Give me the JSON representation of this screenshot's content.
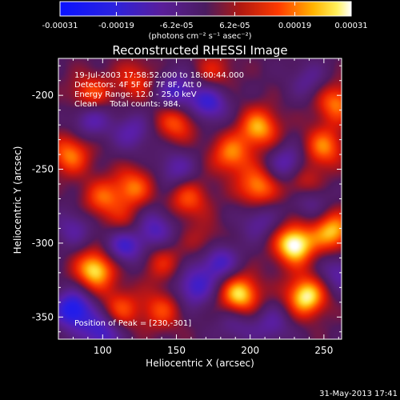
{
  "chart_data": {
    "type": "heatmap",
    "title": "Reconstructed RHESSI Image",
    "xlabel": "Heliocentric X (arcsec)",
    "ylabel": "Heliocentric Y (arcsec)",
    "xlim": [
      70,
      262
    ],
    "ylim": [
      -365,
      -175
    ],
    "x_ticks": [
      "100",
      "150",
      "200",
      "250"
    ],
    "x_tick_values": [
      100,
      150,
      200,
      250
    ],
    "y_ticks": [
      "-200",
      "-250",
      "-300",
      "-350"
    ],
    "y_tick_values": [
      -200,
      -250,
      -300,
      -350
    ],
    "colorbar": {
      "ticks": [
        "-0.00031",
        "-0.00019",
        "-6.2e-05",
        "6.2e-05",
        "0.00019",
        "0.00031"
      ],
      "tick_values": [
        -0.00031,
        -0.00019,
        -6.2e-05,
        6.2e-05,
        0.00019,
        0.00031
      ],
      "range": [
        -0.00031,
        0.00031
      ],
      "colormap": "blue-purple-red-yellow-white"
    },
    "unit_label": "(photons cm⁻² s⁻¹ asec⁻²)",
    "info_lines": [
      "19-Jul-2003 17:58:52.000 to 18:00:44.000",
      "Detectors: 4F 5F 6F 7F 8F, Att 0",
      "Energy Range: 12.0 - 25.0 keV",
      "Clean     Total counts: 984."
    ],
    "peak_label": "Position of Peak = [230,-301]",
    "peak": {
      "x": 230,
      "y": -301
    },
    "blobs": [
      {
        "x": 230,
        "y": -301,
        "v": 1.0
      },
      {
        "x": 238,
        "y": -336,
        "v": 0.9
      },
      {
        "x": 193,
        "y": -335,
        "v": 0.85
      },
      {
        "x": 95,
        "y": -318,
        "v": 0.85
      },
      {
        "x": 256,
        "y": -292,
        "v": 0.75
      },
      {
        "x": 206,
        "y": -222,
        "v": 0.7
      },
      {
        "x": 205,
        "y": -262,
        "v": 0.65
      },
      {
        "x": 187,
        "y": -240,
        "v": 0.6
      },
      {
        "x": 250,
        "y": -235,
        "v": 0.6
      },
      {
        "x": 150,
        "y": -218,
        "v": 0.55
      },
      {
        "x": 158,
        "y": -270,
        "v": 0.5
      },
      {
        "x": 121,
        "y": -262,
        "v": 0.55
      },
      {
        "x": 100,
        "y": -270,
        "v": 0.5
      },
      {
        "x": 78,
        "y": -240,
        "v": 0.6
      },
      {
        "x": 140,
        "y": -345,
        "v": 0.45
      },
      {
        "x": 112,
        "y": -345,
        "v": 0.5
      },
      {
        "x": 140,
        "y": -313,
        "v": 0.35
      },
      {
        "x": 170,
        "y": -300,
        "v": 0.3
      },
      {
        "x": 236,
        "y": -260,
        "v": 0.55
      },
      {
        "x": 116,
        "y": -290,
        "v": 0.45
      },
      {
        "x": 258,
        "y": -205,
        "v": 0.6
      },
      {
        "x": 92,
        "y": -200,
        "v": 0.55
      },
      {
        "x": 122,
        "y": -190,
        "v": 0.4
      },
      {
        "x": 175,
        "y": -185,
        "v": 0.35
      },
      {
        "x": 150,
        "y": -198,
        "v": -0.55
      },
      {
        "x": 172,
        "y": -205,
        "v": -0.6
      },
      {
        "x": 92,
        "y": -215,
        "v": -0.5
      },
      {
        "x": 120,
        "y": -225,
        "v": -0.4
      },
      {
        "x": 115,
        "y": -300,
        "v": -0.75
      },
      {
        "x": 135,
        "y": -290,
        "v": -0.5
      },
      {
        "x": 178,
        "y": -312,
        "v": -0.6
      },
      {
        "x": 162,
        "y": -330,
        "v": -0.55
      },
      {
        "x": 240,
        "y": -270,
        "v": -0.45
      },
      {
        "x": 226,
        "y": -247,
        "v": -0.5
      },
      {
        "x": 80,
        "y": -345,
        "v": -0.8
      },
      {
        "x": 100,
        "y": -360,
        "v": -0.6
      },
      {
        "x": 150,
        "y": -250,
        "v": -0.4
      },
      {
        "x": 260,
        "y": -320,
        "v": -0.4
      },
      {
        "x": 215,
        "y": -355,
        "v": -0.35
      },
      {
        "x": 206,
        "y": -285,
        "v": -0.35
      },
      {
        "x": 80,
        "y": -290,
        "v": -0.35
      },
      {
        "x": 240,
        "y": -190,
        "v": -0.3
      },
      {
        "x": 190,
        "y": -355,
        "v": -0.3
      }
    ]
  },
  "timestamp": "31-May-2013 17:41"
}
